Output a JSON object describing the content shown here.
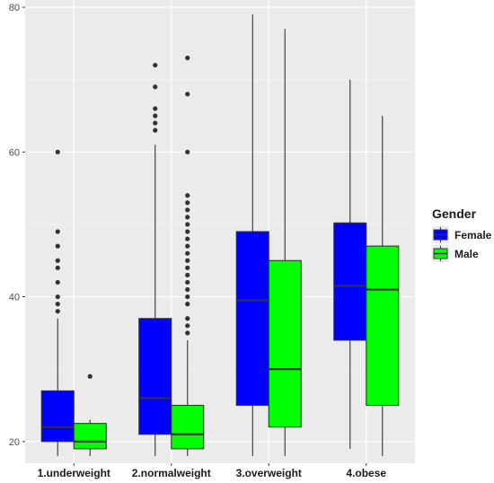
{
  "chart_data": {
    "type": "boxplot",
    "categories": [
      "1.underweight",
      "2.normalweight",
      "3.overweight",
      "4.obese"
    ],
    "ylim": [
      17,
      81
    ],
    "yticks": [
      20,
      40,
      60,
      80
    ],
    "grid": true,
    "legend": {
      "title": "Gender",
      "placement": "right"
    },
    "series": [
      {
        "name": "Female",
        "color": "#0000ff",
        "boxes": [
          {
            "category": "1.underweight",
            "min": 18,
            "q1": 20,
            "median": 22,
            "q3": 27,
            "max": 37,
            "outliers": [
              38,
              39,
              40,
              42,
              44,
              45,
              47,
              49,
              60
            ]
          },
          {
            "category": "2.normalweight",
            "min": 18,
            "q1": 21,
            "median": 26,
            "q3": 37,
            "max": 61,
            "outliers": [
              63,
              64,
              65,
              66,
              69,
              72
            ]
          },
          {
            "category": "3.overweight",
            "min": 18,
            "q1": 25,
            "median": 39.5,
            "q3": 49,
            "max": 79,
            "outliers": []
          },
          {
            "category": "4.obese",
            "min": 19,
            "q1": 34,
            "median": 41.5,
            "q3": 50.2,
            "max": 70,
            "outliers": []
          }
        ]
      },
      {
        "name": "Male",
        "color": "#00ff00",
        "boxes": [
          {
            "category": "1.underweight",
            "min": 18,
            "q1": 19,
            "median": 20,
            "q3": 22.5,
            "max": 23,
            "outliers": [
              29
            ]
          },
          {
            "category": "2.normalweight",
            "min": 18,
            "q1": 19,
            "median": 21,
            "q3": 25,
            "max": 34,
            "outliers": [
              35,
              36,
              37,
              39,
              40,
              41,
              42,
              43,
              44,
              45,
              46,
              47,
              48,
              49,
              50,
              51,
              52,
              53,
              54,
              60,
              68,
              73
            ]
          },
          {
            "category": "3.overweight",
            "min": 18,
            "q1": 22,
            "median": 30,
            "q3": 45,
            "max": 77,
            "outliers": []
          },
          {
            "category": "4.obese",
            "min": 18,
            "q1": 25,
            "median": 41,
            "q3": 47,
            "max": 65,
            "outliers": []
          }
        ]
      }
    ]
  }
}
